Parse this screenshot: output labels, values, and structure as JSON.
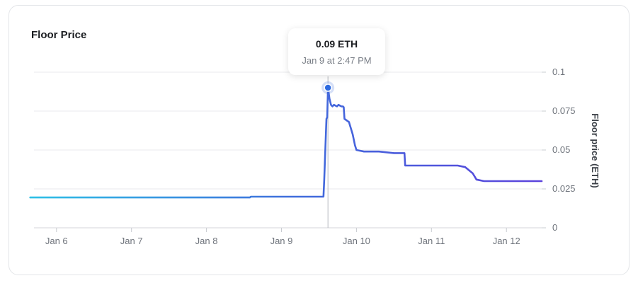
{
  "card": {
    "title": "Floor Price"
  },
  "tooltip": {
    "value": "0.09 ETH",
    "time": "Jan 9 at 2:47 PM"
  },
  "chart_data": {
    "type": "line",
    "title": "Floor Price",
    "xlabel": "",
    "ylabel": "Floor price (ETH)",
    "ylim": [
      0,
      0.1
    ],
    "xlim": [
      5.7,
      12.47
    ],
    "x_unit": "day of January",
    "y_ticks": [
      "0",
      "0.025",
      "0.05",
      "0.075",
      "0.1"
    ],
    "x_ticks": [
      {
        "label": "Jan 6",
        "x": 6
      },
      {
        "label": "Jan 7",
        "x": 7
      },
      {
        "label": "Jan 8",
        "x": 8
      },
      {
        "label": "Jan 9",
        "x": 9
      },
      {
        "label": "Jan 10",
        "x": 10
      },
      {
        "label": "Jan 11",
        "x": 11
      },
      {
        "label": "Jan 12",
        "x": 12
      }
    ],
    "grid": true,
    "line_colors": [
      "#2ec0e6",
      "#3f6fdc",
      "#5b43dc"
    ],
    "highlight": {
      "x": 9.62,
      "y": 0.09
    },
    "series": [
      {
        "x": [
          5.65,
          8.58,
          8.59,
          9.56,
          9.57,
          9.6,
          9.61,
          9.62,
          9.64,
          9.66,
          9.68,
          9.7,
          9.72,
          9.74,
          9.76,
          9.78,
          9.8,
          9.82,
          9.83,
          9.84,
          9.9,
          9.95,
          9.98,
          10.0,
          10.1,
          10.3,
          10.5,
          10.64,
          10.65,
          10.66,
          11.2,
          11.35,
          11.45,
          11.55,
          11.6,
          11.7,
          12.47
        ],
        "y": [
          0.0195,
          0.0195,
          0.02,
          0.02,
          0.031,
          0.07,
          0.071,
          0.09,
          0.083,
          0.079,
          0.078,
          0.079,
          0.0785,
          0.078,
          0.079,
          0.0785,
          0.078,
          0.078,
          0.0775,
          0.07,
          0.068,
          0.06,
          0.053,
          0.05,
          0.049,
          0.049,
          0.048,
          0.048,
          0.04,
          0.04,
          0.04,
          0.04,
          0.039,
          0.035,
          0.031,
          0.03,
          0.03
        ]
      }
    ]
  }
}
